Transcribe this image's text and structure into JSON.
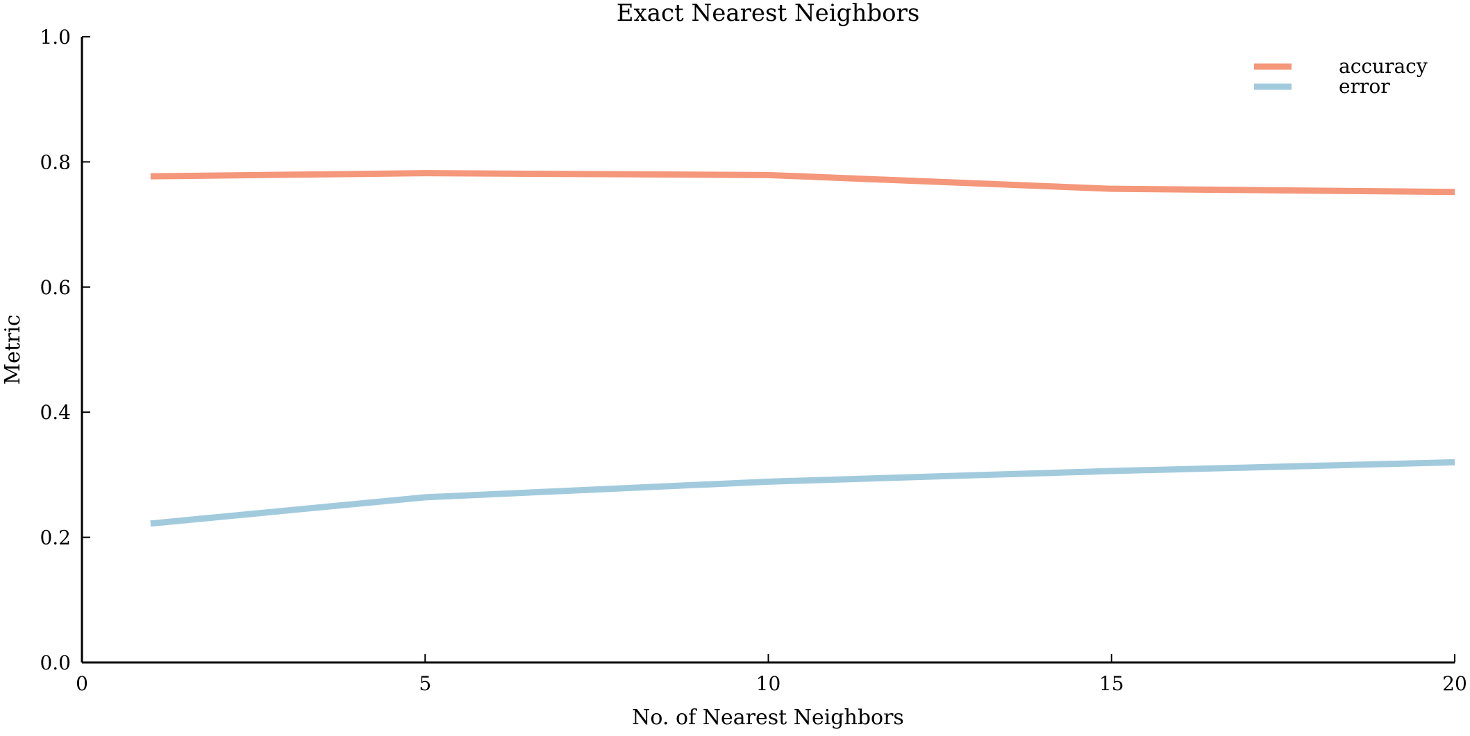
{
  "chart_data": {
    "type": "line",
    "title": "Exact Nearest Neighbors",
    "xlabel": "No. of Nearest Neighbors",
    "ylabel": "Metric",
    "xlim": [
      0,
      20
    ],
    "ylim": [
      0.0,
      1.0
    ],
    "x_ticks": [
      0,
      5,
      10,
      15,
      20
    ],
    "x_tick_labels": [
      "0",
      "5",
      "10",
      "15",
      "20"
    ],
    "y_ticks": [
      0.0,
      0.2,
      0.4,
      0.6,
      0.8,
      1.0
    ],
    "y_tick_labels": [
      "0.0",
      "0.2",
      "0.4",
      "0.6",
      "0.8",
      "1.0"
    ],
    "grid": false,
    "legend_position": "top-right",
    "series": [
      {
        "name": "accuracy",
        "color": "#f4977a",
        "x": [
          1,
          5,
          10,
          15,
          20
        ],
        "values": [
          0.777,
          0.782,
          0.779,
          0.757,
          0.752
        ]
      },
      {
        "name": "error",
        "color": "#a2cadd",
        "x": [
          1,
          5,
          10,
          15,
          20
        ],
        "values": [
          0.222,
          0.264,
          0.289,
          0.306,
          0.32
        ]
      }
    ]
  }
}
